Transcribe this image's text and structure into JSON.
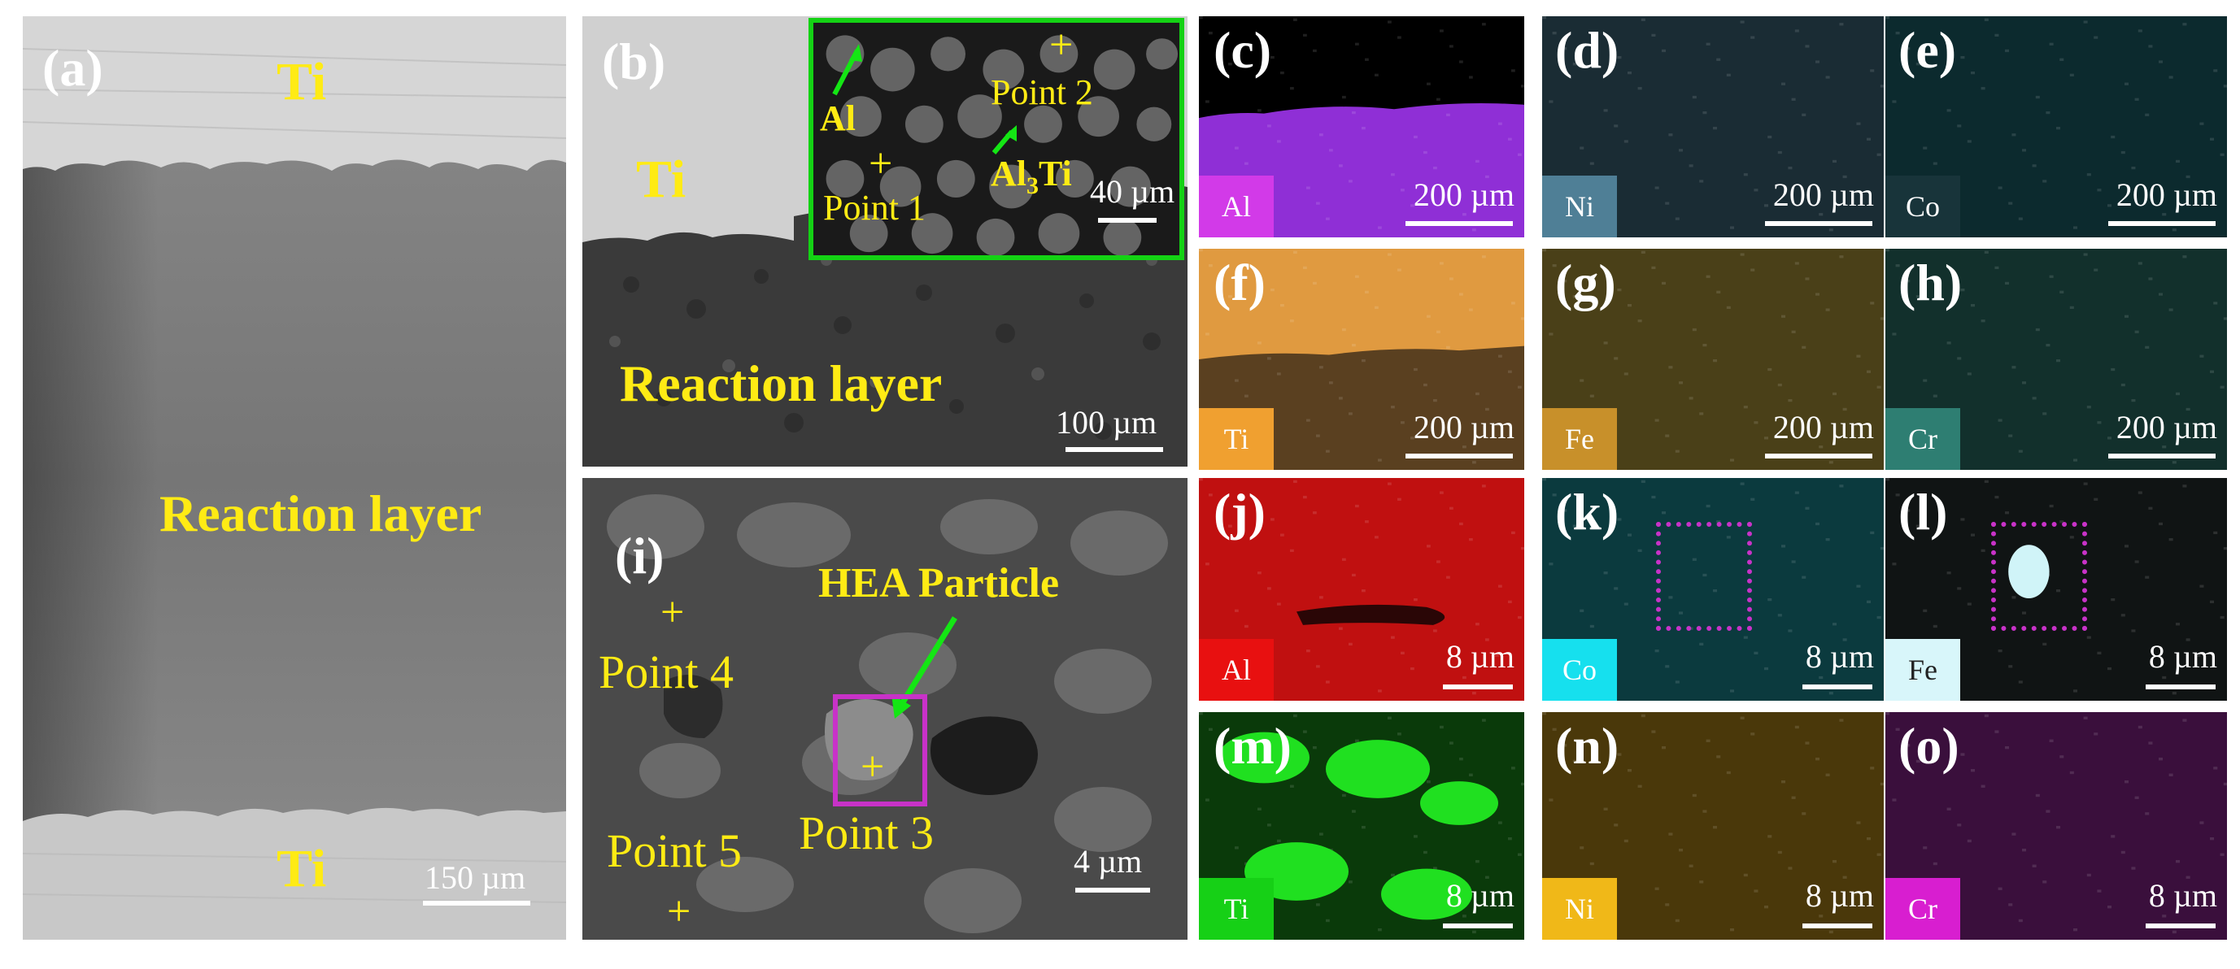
{
  "panel_a": {
    "label": "(a)",
    "ti_top": "Ti",
    "reaction": "Reaction layer",
    "ti_bottom": "Ti",
    "scale": "150 µm"
  },
  "panel_b": {
    "label": "(b)",
    "ti": "Ti",
    "reaction": "Reaction layer",
    "scale": "100 µm",
    "inset": {
      "al": "Al",
      "al3ti_main": "Al",
      "al3ti_sub": "3",
      "al3ti_end": "Ti",
      "point1": "Point 1",
      "point2": "Point 2",
      "scale": "40 µm"
    }
  },
  "panel_i": {
    "label": "(i)",
    "particle": "HEA Particle",
    "point3": "Point 3",
    "point4": "Point 4",
    "point5": "Point 5",
    "scale": "4 µm"
  },
  "maps": [
    {
      "label": "(c)",
      "element": "Al",
      "scale": "200 µm",
      "box_color": "#d23ae8",
      "bg_color": "#8f2fd6"
    },
    {
      "label": "(d)",
      "element": "Ni",
      "scale": "200 µm",
      "box_color": "#4f7f96",
      "bg_color": "#1a2c34"
    },
    {
      "label": "(e)",
      "element": "Co",
      "scale": "200 µm",
      "box_color": "#18343a",
      "bg_color": "#0c2a2e"
    },
    {
      "label": "(f)",
      "element": "Ti",
      "scale": "200 µm",
      "box_color": "#f0a030",
      "bg_color": "#e09a40"
    },
    {
      "label": "(g)",
      "element": "Fe",
      "scale": "200 µm",
      "box_color": "#c8902a",
      "bg_color": "#4a4018"
    },
    {
      "label": "(h)",
      "element": "Cr",
      "scale": "200 µm",
      "box_color": "#2e7e72",
      "bg_color": "#12302c"
    },
    {
      "label": "(j)",
      "element": "Al",
      "scale": "8 µm",
      "box_color": "#e81010",
      "bg_color": "#c01010"
    },
    {
      "label": "(k)",
      "element": "Co",
      "scale": "8 µm",
      "box_color": "#16e0ee",
      "bg_color": "#0b3a3e"
    },
    {
      "label": "(l)",
      "element": "Fe",
      "scale": "8 µm",
      "box_color": "#d8f6fa",
      "bg_color": "#101414"
    },
    {
      "label": "(m)",
      "element": "Ti",
      "scale": "8 µm",
      "box_color": "#16d016",
      "bg_color": "#0a3a0a"
    },
    {
      "label": "(n)",
      "element": "Ni",
      "scale": "8 µm",
      "box_color": "#f0b818",
      "bg_color": "#4a380a"
    },
    {
      "label": "(o)",
      "element": "Cr",
      "scale": "8 µm",
      "box_color": "#d81ed0",
      "bg_color": "#3a0f3c"
    }
  ],
  "colors": {
    "label_yellow": "#ffeb14",
    "inset_border": "#14d214",
    "arrow_green": "#14e614",
    "roi_magenta": "#c832c8"
  }
}
